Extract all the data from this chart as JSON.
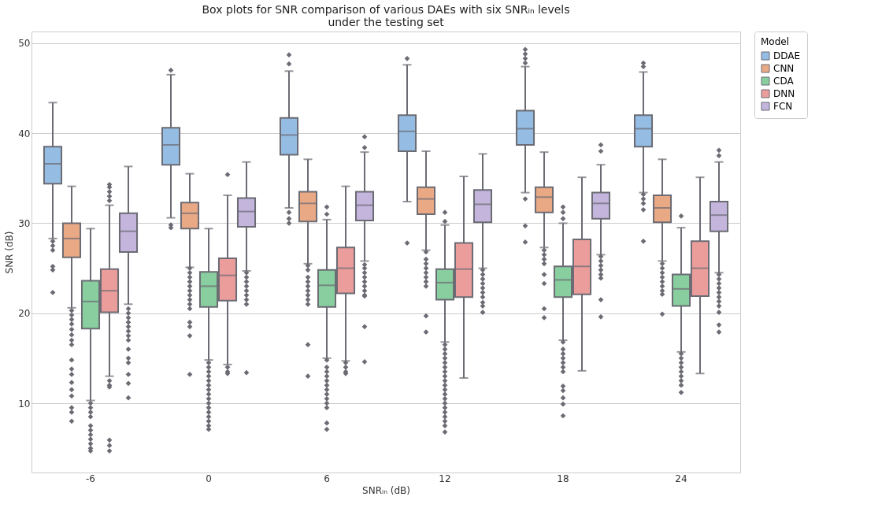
{
  "chart_data": {
    "type": "box",
    "title": "Box plots for SNR comparison of various DAEs with six SNRᵢₙ levels\nunder the testing set",
    "xlabel": "SNRᵢₙ (dB)",
    "ylabel": "SNR (dB)",
    "legend_title": "Model",
    "legend": "top right",
    "grid": "y",
    "marker": "diamond",
    "categories": [
      "-6",
      "0",
      "6",
      "12",
      "18",
      "24"
    ],
    "ylim": [
      2.3,
      51.3
    ],
    "yticks": [
      10,
      20,
      30,
      40,
      50
    ],
    "series": [
      {
        "name": "DDAE",
        "color": "#95bde3",
        "boxes": [
          {
            "low": 28.3,
            "q1": 34.4,
            "median": 36.6,
            "q3": 38.5,
            "high": 43.4,
            "outliers": [
              28,
              27.5,
              27,
              25.2,
              24.8,
              22.3
            ]
          },
          {
            "low": 30.6,
            "q1": 36.5,
            "median": 38.7,
            "q3": 40.6,
            "high": 46.5,
            "outliers": [
              47,
              29.8,
              29.5
            ]
          },
          {
            "low": 31.7,
            "q1": 37.6,
            "median": 39.8,
            "q3": 41.7,
            "high": 46.9,
            "outliers": [
              48.7,
              47.7,
              31.2,
              30.5,
              30.0
            ]
          },
          {
            "low": 32.4,
            "q1": 38.0,
            "median": 40.2,
            "q3": 42.0,
            "high": 47.6,
            "outliers": [
              48.3,
              27.8
            ]
          },
          {
            "low": 33.4,
            "q1": 38.7,
            "median": 40.5,
            "q3": 42.5,
            "high": 47.4,
            "outliers": [
              49.3,
              48.8,
              48.3,
              47.8,
              32.7,
              29.7,
              27.9
            ]
          },
          {
            "low": 33.4,
            "q1": 38.5,
            "median": 40.5,
            "q3": 42.0,
            "high": 46.8,
            "outliers": [
              47.8,
              47.4,
              33.2,
              32.7,
              32.2,
              31.5,
              28.0
            ]
          }
        ]
      },
      {
        "name": "CNN",
        "color": "#eaa985",
        "boxes": [
          {
            "low": 20.6,
            "q1": 26.2,
            "median": 28.3,
            "q3": 30.0,
            "high": 34.1,
            "outliers": [
              20.3,
              19.8,
              19.3,
              18.8,
              18.2,
              17.6,
              17,
              16.5,
              14.8,
              13.8,
              13.2,
              12.3,
              11.5,
              10.8,
              9.5,
              9,
              8.0
            ]
          },
          {
            "low": 25.1,
            "q1": 29.4,
            "median": 31.1,
            "q3": 32.3,
            "high": 35.5,
            "outliers": [
              25,
              24.5,
              24,
              23.5,
              23,
              22.5,
              22,
              21.5,
              21,
              20.5,
              19,
              18.5,
              17.5,
              13.2
            ]
          },
          {
            "low": 25.5,
            "q1": 30.2,
            "median": 32.2,
            "q3": 33.5,
            "high": 37.1,
            "outliers": [
              25.3,
              24.8,
              24,
              23.5,
              23,
              22.5,
              22,
              21.5,
              21,
              16.5,
              13.0
            ]
          },
          {
            "low": 27.0,
            "q1": 31.0,
            "median": 32.7,
            "q3": 34.0,
            "high": 38.0,
            "outliers": [
              26.8,
              26,
              25.5,
              25,
              24.5,
              24,
              23.5,
              23,
              19.7,
              17.9
            ]
          },
          {
            "low": 27.3,
            "q1": 31.2,
            "median": 32.9,
            "q3": 34.0,
            "high": 37.9,
            "outliers": [
              27,
              26.5,
              26,
              25.5,
              24.3,
              23.3,
              20.5,
              19.5
            ]
          },
          {
            "low": 25.8,
            "q1": 30.1,
            "median": 31.7,
            "q3": 33.1,
            "high": 37.1,
            "outliers": [
              25.5,
              25,
              24.5,
              24,
              23.5,
              23,
              22.5,
              22.1,
              19.9
            ]
          }
        ]
      },
      {
        "name": "CDA",
        "color": "#88ce9e",
        "boxes": [
          {
            "low": 10.3,
            "q1": 18.3,
            "median": 21.3,
            "q3": 23.6,
            "high": 29.4,
            "outliers": [
              10,
              9.5,
              9,
              8.5,
              7.5,
              7,
              6.5,
              6,
              5.5,
              5,
              4.7
            ]
          },
          {
            "low": 14.8,
            "q1": 20.7,
            "median": 23.0,
            "q3": 24.6,
            "high": 29.4,
            "outliers": [
              14.5,
              14,
              13.5,
              13,
              12.5,
              12,
              11.5,
              11,
              10.5,
              10,
              9.5,
              9,
              8.5,
              8,
              7.5,
              7.1
            ]
          },
          {
            "low": 15.0,
            "q1": 20.7,
            "median": 23.1,
            "q3": 24.8,
            "high": 30.4,
            "outliers": [
              31.8,
              31.0,
              14.8,
              14,
              13.5,
              13,
              12.5,
              12,
              11.5,
              11,
              10.5,
              10,
              9.5,
              7.8,
              7.1
            ]
          },
          {
            "low": 16.8,
            "q1": 21.5,
            "median": 23.4,
            "q3": 24.9,
            "high": 29.8,
            "outliers": [
              31.2,
              30.2,
              16.5,
              16,
              15.5,
              15,
              14.5,
              14,
              13.5,
              13,
              12.5,
              12,
              11.5,
              11,
              10.5,
              10,
              9.5,
              9,
              8.5,
              8,
              7.5,
              6.8
            ]
          },
          {
            "low": 17.0,
            "q1": 21.8,
            "median": 23.7,
            "q3": 25.2,
            "high": 30.0,
            "outliers": [
              31.8,
              31.2,
              30.5,
              16.8,
              16,
              15.5,
              15,
              14.5,
              14,
              13.5,
              11.9,
              11.4,
              10.6,
              9.9,
              8.6
            ]
          },
          {
            "low": 15.7,
            "q1": 20.8,
            "median": 22.7,
            "q3": 24.3,
            "high": 29.5,
            "outliers": [
              30.8,
              15.5,
              15,
              14.5,
              14,
              13.5,
              13,
              12.5,
              12,
              11.2
            ]
          }
        ]
      },
      {
        "name": "DNN",
        "color": "#eb9d9b",
        "boxes": [
          {
            "low": 13.0,
            "q1": 20.1,
            "median": 22.5,
            "q3": 24.9,
            "high": 32.0,
            "outliers": [
              34.3,
              34,
              33.5,
              33,
              32.5,
              12.5,
              12,
              11.8,
              5.9,
              5.3,
              4.7
            ]
          },
          {
            "low": 14.3,
            "q1": 21.4,
            "median": 24.2,
            "q3": 26.1,
            "high": 33.1,
            "outliers": [
              35.4,
              14,
              13.5,
              13.3
            ]
          },
          {
            "low": 14.7,
            "q1": 22.2,
            "median": 25.0,
            "q3": 27.3,
            "high": 34.1,
            "outliers": [
              14.5,
              14,
              13.5,
              13.3
            ]
          },
          {
            "low": 12.8,
            "q1": 21.8,
            "median": 24.9,
            "q3": 27.8,
            "high": 35.2
          },
          {
            "low": 13.6,
            "q1": 22.1,
            "median": 25.2,
            "q3": 28.2,
            "high": 35.1
          },
          {
            "low": 13.3,
            "q1": 21.9,
            "median": 25.0,
            "q3": 28.0,
            "high": 35.1
          }
        ]
      },
      {
        "name": "FCN",
        "color": "#c3b5dc",
        "boxes": [
          {
            "low": 21.0,
            "q1": 26.8,
            "median": 29.1,
            "q3": 31.1,
            "high": 36.3,
            "outliers": [
              20.5,
              20,
              19.5,
              19,
              18.5,
              18,
              17.5,
              17,
              16,
              15,
              14.5,
              13.2,
              12.2,
              10.6
            ]
          },
          {
            "low": 24.7,
            "q1": 29.6,
            "median": 31.3,
            "q3": 32.8,
            "high": 36.8,
            "outliers": [
              24.5,
              24,
              23.5,
              23,
              22.5,
              22,
              21.5,
              21,
              13.4
            ]
          },
          {
            "low": 25.8,
            "q1": 30.3,
            "median": 32.0,
            "q3": 33.5,
            "high": 37.9,
            "outliers": [
              39.6,
              38.4,
              25.4,
              25,
              24.5,
              24,
              23.5,
              23,
              22.5,
              22,
              21.9,
              18.5,
              14.6
            ]
          },
          {
            "low": 25.0,
            "q1": 30.1,
            "median": 32.1,
            "q3": 33.7,
            "high": 37.7,
            "outliers": [
              24.8,
              24.3,
              23.8,
              23.3,
              22.8,
              22.3,
              21.8,
              21.2,
              20.8,
              20.1
            ]
          },
          {
            "low": 26.5,
            "q1": 30.5,
            "median": 32.2,
            "q3": 33.4,
            "high": 36.5,
            "outliers": [
              38.7,
              38.0,
              26.3,
              25.8,
              25.3,
              24.8,
              24.3,
              23.9,
              21.5,
              19.6
            ]
          },
          {
            "low": 24.5,
            "q1": 29.1,
            "median": 30.9,
            "q3": 32.4,
            "high": 36.8,
            "outliers": [
              38.1,
              37.5,
              24.3,
              23.8,
              23.3,
              22.8,
              22.3,
              21.8,
              21.3,
              20.8,
              20.1,
              18.7,
              17.9
            ]
          }
        ]
      }
    ]
  }
}
